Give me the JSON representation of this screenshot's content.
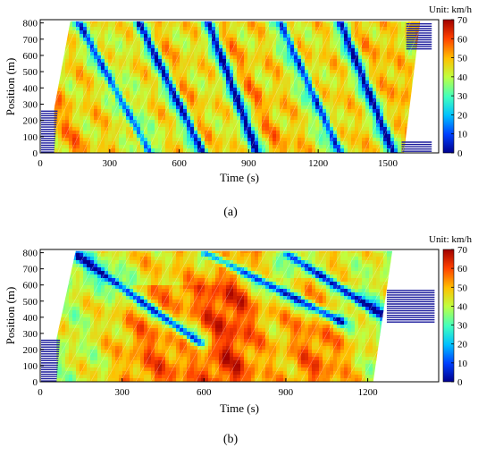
{
  "chart_data": [
    {
      "id": "a",
      "type": "heatmap",
      "caption": "(a)",
      "xlabel": "Time (s)",
      "ylabel": "Position (m)",
      "xlim": [
        0,
        1720
      ],
      "ylim": [
        0,
        820
      ],
      "x_ticks": [
        0,
        300,
        600,
        900,
        1200,
        1500
      ],
      "y_ticks": [
        0,
        100,
        200,
        300,
        400,
        500,
        600,
        700,
        800
      ],
      "colorbar": {
        "unit_label": "Unit: km/h",
        "min": 0,
        "max": 70,
        "ticks": [
          0,
          10,
          20,
          30,
          40,
          50,
          60,
          70
        ]
      },
      "vehicle_data_extent": {
        "road_top_m": 810,
        "entry_queue_top_m": 270,
        "entry_time_s": 60,
        "upstream_fill_end_s": 130,
        "last_trajectory_end_s": 1640
      },
      "congestion_waves": [
        {
          "x_start": 160,
          "y_start": 810,
          "x_end": 470,
          "y_end": 0
        },
        {
          "x_start": 420,
          "y_start": 810,
          "x_end": 700,
          "y_end": 0
        },
        {
          "x_start": 720,
          "y_start": 810,
          "x_end": 930,
          "y_end": 0
        },
        {
          "x_start": 1030,
          "y_start": 810,
          "x_end": 1290,
          "y_end": 0
        },
        {
          "x_start": 1290,
          "y_start": 810,
          "x_end": 1520,
          "y_end": 0
        }
      ]
    },
    {
      "id": "b",
      "type": "heatmap",
      "caption": "(b)",
      "xlabel": "Time (s)",
      "ylabel": "Position (m)",
      "xlim": [
        0,
        1460
      ],
      "ylim": [
        0,
        820
      ],
      "x_ticks": [
        0,
        300,
        600,
        900,
        1200
      ],
      "y_ticks": [
        0,
        100,
        200,
        300,
        400,
        500,
        600,
        700,
        800
      ],
      "colorbar": {
        "unit_label": "Unit: km/h",
        "min": 0,
        "max": 70,
        "ticks": [
          0,
          10,
          20,
          30,
          40,
          50,
          60,
          70
        ]
      },
      "vehicle_data_extent": {
        "road_top_m": 810,
        "entry_queue_top_m": 270,
        "entry_time_s": 60,
        "upstream_fill_end_s": 130,
        "last_trajectory_end_s": 1290
      },
      "congestion_waves": [
        {
          "x_start": 130,
          "y_start": 790,
          "x_end": 580,
          "y_end": 250
        },
        {
          "x_start": 600,
          "y_start": 810,
          "x_end": 1100,
          "y_end": 380
        },
        {
          "x_start": 900,
          "y_start": 800,
          "x_end": 1250,
          "y_end": 420
        }
      ]
    }
  ]
}
